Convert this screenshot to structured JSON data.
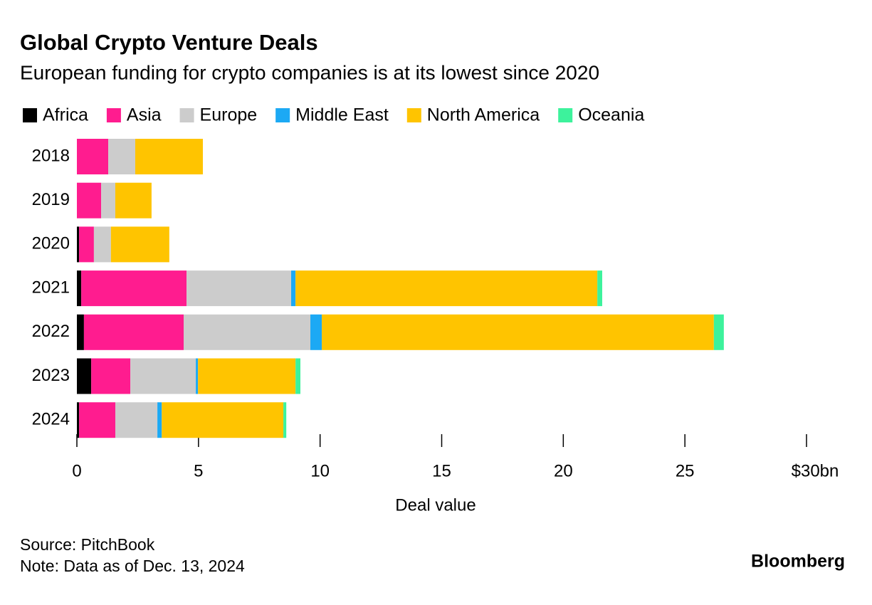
{
  "chart_data": {
    "type": "bar",
    "orientation": "horizontal",
    "stacked": true,
    "title": "Global Crypto Venture Deals",
    "subtitle": "European funding for crypto companies is at its lowest since 2020",
    "xlabel": "Deal value",
    "categories": [
      "2018",
      "2019",
      "2020",
      "2021",
      "2022",
      "2023",
      "2024"
    ],
    "series": [
      {
        "name": "Africa",
        "color": "#000000",
        "values": [
          0,
          0,
          0.09,
          0.18,
          0.29,
          0.59,
          0.09
        ]
      },
      {
        "name": "Asia",
        "color": "#ff1c8f",
        "values": [
          1.29,
          1.0,
          0.61,
          4.33,
          4.1,
          1.61,
          1.49
        ]
      },
      {
        "name": "Europe",
        "color": "#cccccc",
        "values": [
          1.11,
          0.58,
          0.7,
          4.3,
          5.21,
          2.69,
          1.73
        ]
      },
      {
        "name": "Middle East",
        "color": "#1ca9f4",
        "values": [
          0,
          0,
          0,
          0.18,
          0.47,
          0.09,
          0.18
        ]
      },
      {
        "name": "North America",
        "color": "#ffc400",
        "values": [
          2.78,
          1.49,
          2.4,
          12.41,
          16.12,
          4.01,
          5.0
        ]
      },
      {
        "name": "Oceania",
        "color": "#3df29c",
        "values": [
          0,
          0,
          0,
          0.2,
          0.41,
          0.2,
          0.12
        ]
      }
    ],
    "xlim": [
      0,
      30
    ],
    "xticks": [
      0,
      5,
      10,
      15,
      20,
      25,
      {
        "value": 30,
        "label": "$30bn"
      }
    ],
    "source": "Source: PitchBook",
    "note": "Note: Data as of Dec. 13, 2024",
    "logo": "Bloomberg"
  }
}
